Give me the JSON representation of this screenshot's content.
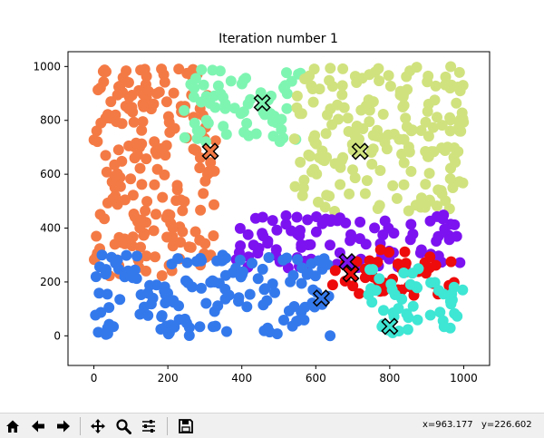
{
  "chart_data": {
    "type": "scatter",
    "title": "Iteration number 1",
    "xlim": [
      -70,
      1070
    ],
    "ylim": [
      -110,
      1055
    ],
    "xticks": [
      0,
      200,
      400,
      600,
      800,
      1000
    ],
    "yticks": [
      0,
      200,
      400,
      600,
      800,
      1000
    ],
    "xtick_labels": [
      "0",
      "200",
      "400",
      "600",
      "800",
      "1000"
    ],
    "ytick_labels": [
      "0",
      "200",
      "400",
      "600",
      "800",
      "1000"
    ],
    "grid": false,
    "clusters": [
      {
        "color": "#f47a45",
        "region": {
          "x": [
            0,
            330
          ],
          "y": [
            220,
            1000
          ]
        },
        "centroid": {
          "x": 315,
          "y": 685
        }
      },
      {
        "color": "#7ff5b2",
        "region": {
          "x": [
            240,
            560
          ],
          "y": [
            720,
            1000
          ]
        },
        "centroid": {
          "x": 455,
          "y": 865
        }
      },
      {
        "color": "#d0e27e",
        "region": {
          "x": [
            540,
            1000
          ],
          "y": [
            460,
            1000
          ]
        },
        "centroid": {
          "x": 720,
          "y": 685
        }
      },
      {
        "color": "#7d12f0",
        "region": {
          "x": [
            380,
            1000
          ],
          "y": [
            250,
            450
          ]
        },
        "centroid": {
          "x": 685,
          "y": 275
        }
      },
      {
        "color": "#3479ec",
        "region": {
          "x": [
            0,
            640
          ],
          "y": [
            0,
            300
          ]
        },
        "centroid": {
          "x": 615,
          "y": 140
        }
      },
      {
        "color": "#ee0b0b",
        "region": {
          "x": [
            640,
            980
          ],
          "y": [
            150,
            320
          ]
        },
        "centroid": {
          "x": 695,
          "y": 230
        }
      },
      {
        "color": "#3ee6d4",
        "region": {
          "x": [
            740,
            1000
          ],
          "y": [
            10,
            250
          ]
        },
        "centroid": {
          "x": 800,
          "y": 35
        }
      }
    ]
  },
  "toolbar": {
    "buttons": [
      {
        "name": "home-button",
        "icon": "home-icon"
      },
      {
        "name": "back-button",
        "icon": "arrow-left-icon"
      },
      {
        "name": "forward-button",
        "icon": "arrow-right-icon"
      },
      {
        "name": "pan-button",
        "icon": "move-icon"
      },
      {
        "name": "zoom-button",
        "icon": "magnifier-icon"
      },
      {
        "name": "configure-subplots-button",
        "icon": "sliders-icon"
      },
      {
        "name": "save-button",
        "icon": "floppy-disk-icon"
      }
    ],
    "coord_x": "x=963.177",
    "coord_y": "y=226.602"
  }
}
